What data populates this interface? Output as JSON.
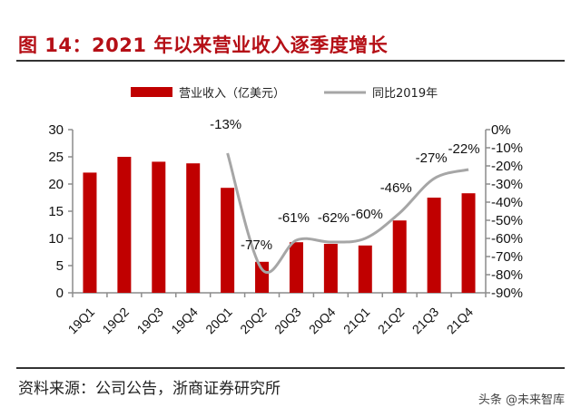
{
  "header": {
    "title": "图 14：2021 年以来营业收入逐季度增长"
  },
  "footer": {
    "source": "资料来源：公司公告，浙商证券研究所",
    "watermark": "头条 @未来智库"
  },
  "colors": {
    "title": "#b50f16",
    "bar": "#c00000",
    "line": "#a6a6a6",
    "axis": "#8c8c8c"
  },
  "chart_data": {
    "type": "bar",
    "title": "图 14：2021 年以来营业收入逐季度增长",
    "categories": [
      "19Q1",
      "19Q2",
      "19Q3",
      "19Q4",
      "20Q1",
      "20Q2",
      "20Q3",
      "20Q4",
      "21Q1",
      "21Q2",
      "21Q3",
      "21Q4"
    ],
    "series": [
      {
        "name": "营业收入（亿美元）",
        "type": "bar",
        "axis": "left",
        "values": [
          22.1,
          25.0,
          24.1,
          23.8,
          19.3,
          5.7,
          9.3,
          9.0,
          8.7,
          13.3,
          17.5,
          18.3
        ]
      },
      {
        "name": "同比2019年",
        "type": "line",
        "axis": "right",
        "values": [
          null,
          null,
          null,
          null,
          -13,
          -77,
          -61,
          -62,
          -60,
          -46,
          -27,
          -22
        ],
        "labels": [
          "",
          "",
          "",
          "",
          "-13%",
          "-77%",
          "-61%",
          "-62%",
          "-60%",
          "-46%",
          "-27%",
          "-22%"
        ]
      }
    ],
    "y_left": {
      "min": 0,
      "max": 30,
      "ticks": [
        0,
        5,
        10,
        15,
        20,
        25,
        30
      ],
      "tick_labels": [
        "0",
        "5",
        "10",
        "15",
        "20",
        "25",
        "30"
      ]
    },
    "y_right": {
      "min": -90,
      "max": 0,
      "ticks": [
        0,
        -10,
        -20,
        -30,
        -40,
        -50,
        -60,
        -70,
        -80,
        -90
      ],
      "tick_labels": [
        "0%",
        "-10%",
        "-20%",
        "-30%",
        "-40%",
        "-50%",
        "-60%",
        "-70%",
        "-80%",
        "-90%"
      ]
    },
    "xlabel": "",
    "ylabel": "",
    "legend_position": "top-center",
    "grid": false
  }
}
